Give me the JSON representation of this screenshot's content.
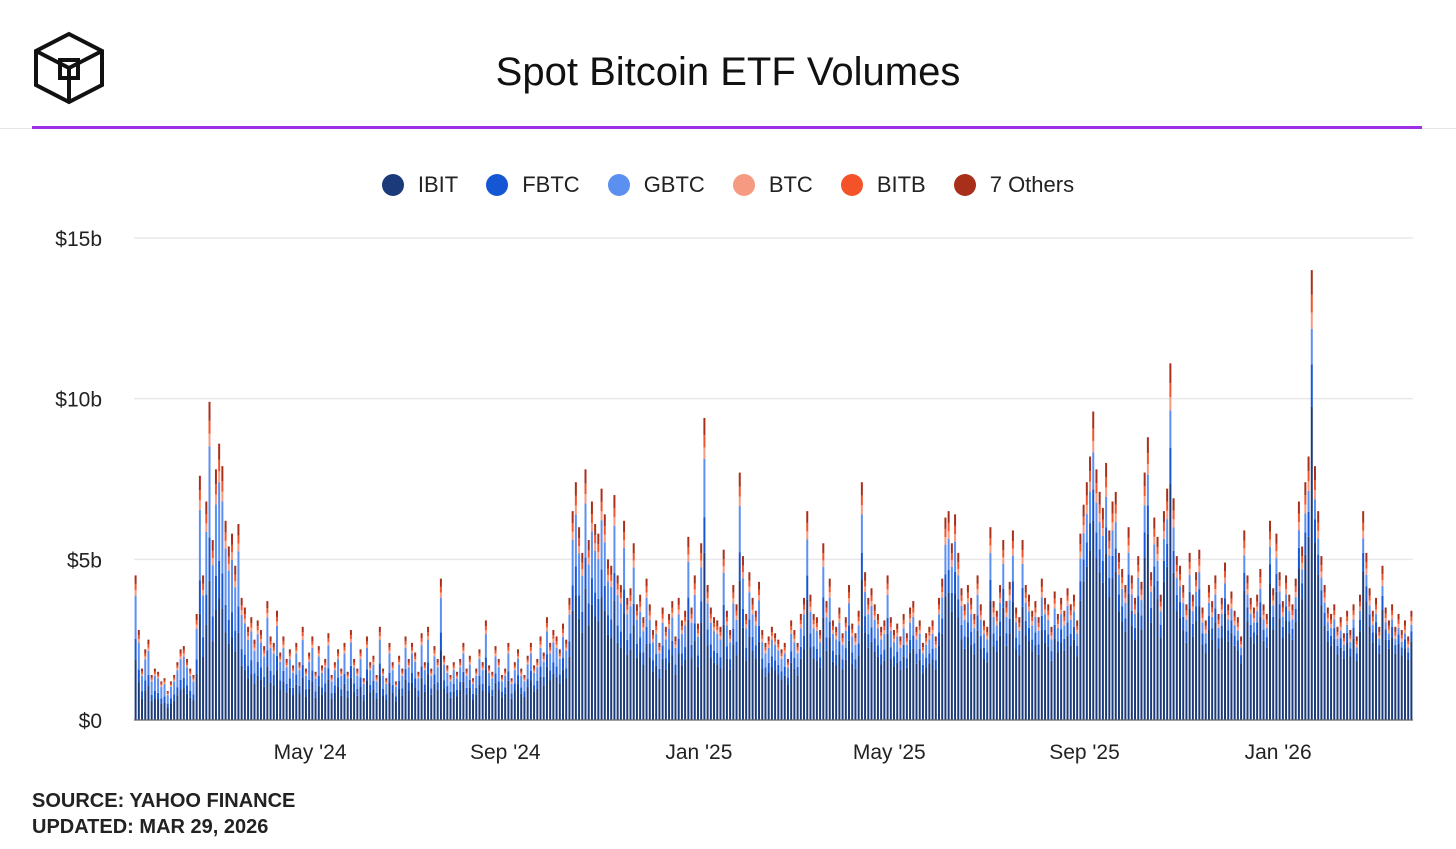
{
  "header": {
    "title": "Spot Bitcoin ETF Volumes"
  },
  "footer": {
    "source": "SOURCE: YAHOO FINANCE",
    "updated": "UPDATED: MAR 29, 2026"
  },
  "colors": {
    "accent_rule": "#9b30e6",
    "grid": "#e8e8ec"
  },
  "logo": {
    "icon": "cube-logo-icon"
  },
  "chart_data": {
    "type": "bar",
    "stacked": true,
    "ylim": [
      0,
      15
    ],
    "ytick_values": [
      0,
      5,
      10,
      15
    ],
    "ytick_labels": [
      "$0",
      "$5b",
      "$10b",
      "$15b"
    ],
    "xtick_labels": [
      "May '24",
      "Sep '24",
      "Jan '25",
      "May '25",
      "Sep '25",
      "Jan '26"
    ],
    "x_range": [
      "2024-01-11",
      "2026-03-27"
    ],
    "xtick_dates": [
      "2024-05-01",
      "2024-09-01",
      "2025-01-01",
      "2025-05-01",
      "2025-09-01",
      "2026-01-01"
    ],
    "grid": true,
    "legend_position": "top-center",
    "series": [
      {
        "name": "IBIT",
        "color": "#1b3a7a"
      },
      {
        "name": "FBTC",
        "color": "#1556d4"
      },
      {
        "name": "GBTC",
        "color": "#5b8ff0"
      },
      {
        "name": "BTC",
        "color": "#f79a82"
      },
      {
        "name": "BITB",
        "color": "#f4532a"
      },
      {
        "name": "7 Others",
        "color": "#a8301a"
      }
    ],
    "daily_totals_note": "Approximate daily totals ($b) read from the figure",
    "daily_totals": [
      4.5,
      2.8,
      1.6,
      2.2,
      2.5,
      1.4,
      1.6,
      1.5,
      1.2,
      1.3,
      0.9,
      1.2,
      1.4,
      1.8,
      2.2,
      2.3,
      1.9,
      1.6,
      1.4,
      3.3,
      7.6,
      4.5,
      6.8,
      9.9,
      5.6,
      7.8,
      8.6,
      7.9,
      6.2,
      5.4,
      5.8,
      4.8,
      6.1,
      3.8,
      3.5,
      2.9,
      3.2,
      2.5,
      3.1,
      2.8,
      2.3,
      3.7,
      2.6,
      2.4,
      3.4,
      2.1,
      2.6,
      1.9,
      2.2,
      1.7,
      2.4,
      1.8,
      2.9,
      1.6,
      2.1,
      2.6,
      1.5,
      2.3,
      1.7,
      1.9,
      2.7,
      1.4,
      1.8,
      2.2,
      1.6,
      2.4,
      1.5,
      2.8,
      1.9,
      1.6,
      2.2,
      1.3,
      2.6,
      1.8,
      2.0,
      1.4,
      2.9,
      1.6,
      1.3,
      2.4,
      1.8,
      1.2,
      2.0,
      1.6,
      2.6,
      1.9,
      2.4,
      2.1,
      1.5,
      2.7,
      1.8,
      2.9,
      1.6,
      2.3,
      1.9,
      4.4,
      2.0,
      1.7,
      1.4,
      1.8,
      1.5,
      1.9,
      2.4,
      1.6,
      2.0,
      1.3,
      1.6,
      2.2,
      1.8,
      3.1,
      1.7,
      1.5,
      2.3,
      1.9,
      1.4,
      1.6,
      2.4,
      1.3,
      1.8,
      2.2,
      1.6,
      1.4,
      2.0,
      2.4,
      1.7,
      1.9,
      2.6,
      2.1,
      3.2,
      2.4,
      2.8,
      2.6,
      2.2,
      3.0,
      2.5,
      3.8,
      6.5,
      7.4,
      6.0,
      5.2,
      7.8,
      5.6,
      6.8,
      6.1,
      5.8,
      7.2,
      6.4,
      5.0,
      4.8,
      7.0,
      4.5,
      4.2,
      6.2,
      3.8,
      4.1,
      5.5,
      3.6,
      3.9,
      3.2,
      4.4,
      3.6,
      2.8,
      3.1,
      2.4,
      3.5,
      2.9,
      3.3,
      3.7,
      2.6,
      3.8,
      3.1,
      3.4,
      5.7,
      3.5,
      4.5,
      3.0,
      5.5,
      9.4,
      4.2,
      3.5,
      3.2,
      3.1,
      2.9,
      5.3,
      3.4,
      2.8,
      4.2,
      3.6,
      7.7,
      5.1,
      3.3,
      4.6,
      3.8,
      3.4,
      4.3,
      2.8,
      2.4,
      2.6,
      2.9,
      2.7,
      2.5,
      2.2,
      2.4,
      1.9,
      3.1,
      2.8,
      2.4,
      3.3,
      3.8,
      6.5,
      3.9,
      3.3,
      3.2,
      2.8,
      5.5,
      3.7,
      4.4,
      3.1,
      2.9,
      3.5,
      2.7,
      3.2,
      4.2,
      3.0,
      2.7,
      3.4,
      7.4,
      4.6,
      3.8,
      4.1,
      3.6,
      3.3,
      2.9,
      3.1,
      4.5,
      3.2,
      2.8,
      3.0,
      2.6,
      3.3,
      2.7,
      3.5,
      3.7,
      2.9,
      3.1,
      2.4,
      2.7,
      2.9,
      3.1,
      2.6,
      3.8,
      4.4,
      6.3,
      6.5,
      5.5,
      6.4,
      5.2,
      4.1,
      3.6,
      4.2,
      3.8,
      3.3,
      4.5,
      3.6,
      3.1,
      2.9,
      6.0,
      3.7,
      3.4,
      4.2,
      5.6,
      3.7,
      4.3,
      5.9,
      3.5,
      3.2,
      5.6,
      4.2,
      3.9,
      3.4,
      3.7,
      3.2,
      4.4,
      3.8,
      3.6,
      2.9,
      4.0,
      3.3,
      3.8,
      3.4,
      4.1,
      3.6,
      3.9,
      3.1,
      5.8,
      6.7,
      7.4,
      8.2,
      9.6,
      7.8,
      7.1,
      6.6,
      8.0,
      5.9,
      6.8,
      7.1,
      5.2,
      4.7,
      4.2,
      6.0,
      4.5,
      3.8,
      5.1,
      4.3,
      7.7,
      8.8,
      4.6,
      6.3,
      5.7,
      3.9,
      6.5,
      7.2,
      11.1,
      6.9,
      5.1,
      4.8,
      4.2,
      3.6,
      5.2,
      3.9,
      4.6,
      5.3,
      3.5,
      3.1,
      4.2,
      3.7,
      4.5,
      3.3,
      3.8,
      4.9,
      3.6,
      4.0,
      3.4,
      3.2,
      2.6,
      5.9,
      4.5,
      3.8,
      3.5,
      3.9,
      4.7,
      3.6,
      3.3,
      6.2,
      4.1,
      5.8,
      4.6,
      3.7,
      4.5,
      3.9,
      3.6,
      4.4,
      6.8,
      5.4,
      7.4,
      8.2,
      14.0,
      7.9,
      6.5,
      5.1,
      4.2,
      3.5,
      3.3,
      3.6,
      2.9,
      3.2,
      2.7,
      3.4,
      2.8,
      3.6,
      2.6,
      3.9,
      6.5,
      5.2,
      4.1,
      3.4,
      3.8,
      2.9,
      4.8,
      3.5,
      3.1,
      3.6,
      2.9,
      3.3,
      2.8,
      3.1,
      2.6,
      3.4
    ]
  }
}
